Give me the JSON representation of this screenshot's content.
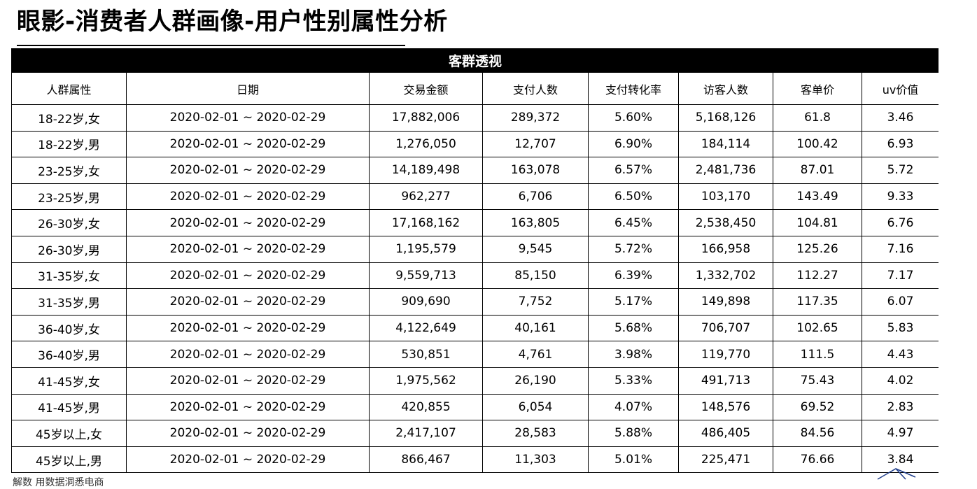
{
  "page": {
    "title": "眼影-消费者人群画像-用户性别属性分析"
  },
  "table": {
    "banner": "客群透视",
    "columns": [
      "人群属性",
      "日期",
      "交易金额",
      "支付人数",
      "支付转化率",
      "访客人数",
      "客单价",
      "uv价值"
    ],
    "rows": [
      [
        "18-22岁,女",
        "2020-02-01 ~ 2020-02-29",
        "17,882,006",
        "289,372",
        "5.60%",
        "5,168,126",
        "61.8",
        "3.46"
      ],
      [
        "18-22岁,男",
        "2020-02-01 ~ 2020-02-29",
        "1,276,050",
        "12,707",
        "6.90%",
        "184,114",
        "100.42",
        "6.93"
      ],
      [
        "23-25岁,女",
        "2020-02-01 ~ 2020-02-29",
        "14,189,498",
        "163,078",
        "6.57%",
        "2,481,736",
        "87.01",
        "5.72"
      ],
      [
        "23-25岁,男",
        "2020-02-01 ~ 2020-02-29",
        "962,277",
        "6,706",
        "6.50%",
        "103,170",
        "143.49",
        "9.33"
      ],
      [
        "26-30岁,女",
        "2020-02-01 ~ 2020-02-29",
        "17,168,162",
        "163,805",
        "6.45%",
        "2,538,450",
        "104.81",
        "6.76"
      ],
      [
        "26-30岁,男",
        "2020-02-01 ~ 2020-02-29",
        "1,195,579",
        "9,545",
        "5.72%",
        "166,958",
        "125.26",
        "7.16"
      ],
      [
        "31-35岁,女",
        "2020-02-01 ~ 2020-02-29",
        "9,559,713",
        "85,150",
        "6.39%",
        "1,332,702",
        "112.27",
        "7.17"
      ],
      [
        "31-35岁,男",
        "2020-02-01 ~ 2020-02-29",
        "909,690",
        "7,752",
        "5.17%",
        "149,898",
        "117.35",
        "6.07"
      ],
      [
        "36-40岁,女",
        "2020-02-01 ~ 2020-02-29",
        "4,122,649",
        "40,161",
        "5.68%",
        "706,707",
        "102.65",
        "5.83"
      ],
      [
        "36-40岁,男",
        "2020-02-01 ~ 2020-02-29",
        "530,851",
        "4,761",
        "3.98%",
        "119,770",
        "111.5",
        "4.43"
      ],
      [
        "41-45岁,女",
        "2020-02-01 ~ 2020-02-29",
        "1,975,562",
        "26,190",
        "5.33%",
        "491,713",
        "75.43",
        "4.02"
      ],
      [
        "41-45岁,男",
        "2020-02-01 ~ 2020-02-29",
        "420,855",
        "6,054",
        "4.07%",
        "148,576",
        "69.52",
        "2.83"
      ],
      [
        "45岁以上,女",
        "2020-02-01 ~ 2020-02-29",
        "2,417,107",
        "28,583",
        "5.88%",
        "486,405",
        "84.56",
        "4.97"
      ],
      [
        "45岁以上,男",
        "2020-02-01 ~ 2020-02-29",
        "866,467",
        "11,303",
        "5.01%",
        "225,471",
        "76.66",
        "3.84"
      ]
    ]
  },
  "footnote": "解数 用数据洞悉电商",
  "colors": {
    "banner_bg": "#000000",
    "banner_text": "#ffffff",
    "border": "#000000",
    "decor_stroke": "#1f3d8a"
  },
  "decor_icon": "corner-graphic-icon"
}
